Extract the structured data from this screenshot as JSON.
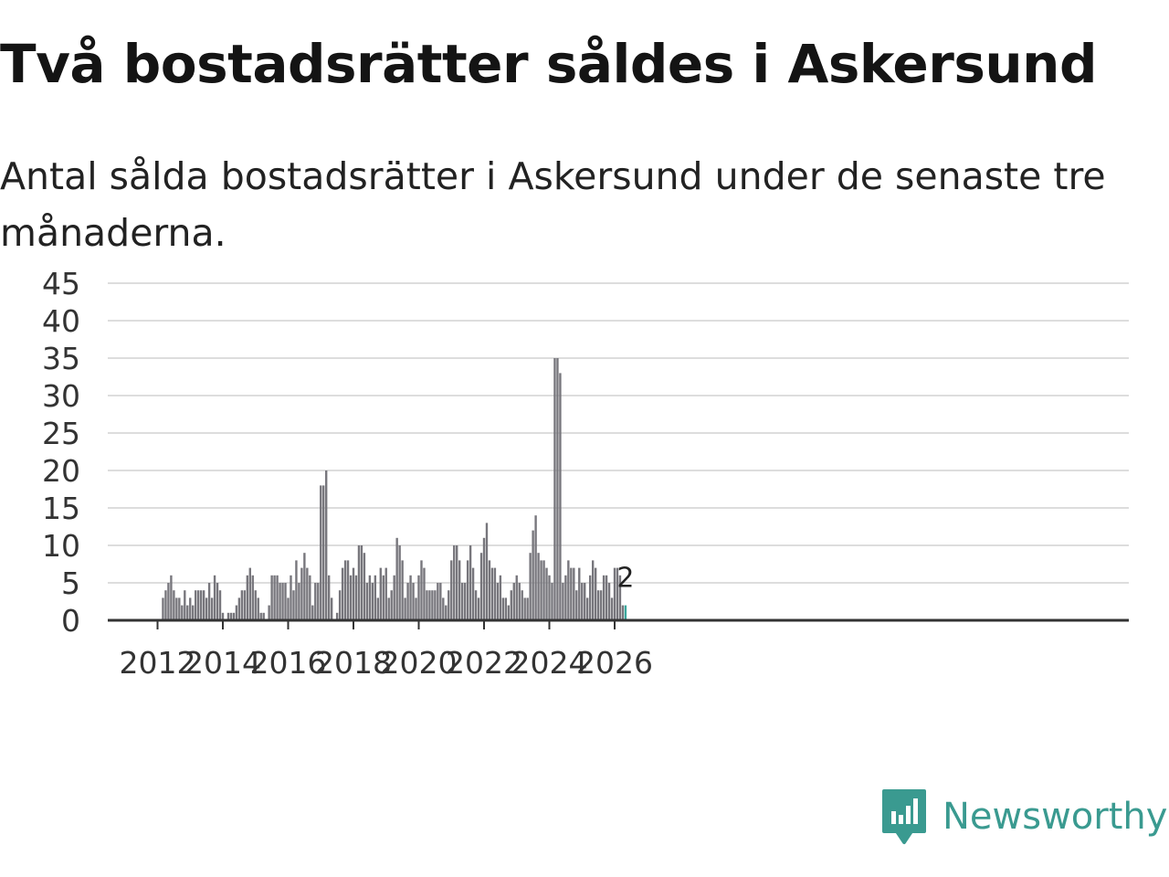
{
  "title": "Två bostadsrätter såldes i Askersund",
  "subtitle": "Antal sålda bostadsrätter i Askersund under de senaste tre månaderna.",
  "brand": {
    "name": "Newsworthy",
    "icon": "newsworthy-logo-icon"
  },
  "colors": {
    "bar": "#77767c",
    "highlight": "#3aa79c",
    "brand": "#3a9a90",
    "grid": "#dddddd",
    "axis": "#333333"
  },
  "chart_data": {
    "type": "bar",
    "title": "Två bostadsrätter såldes i Askersund",
    "ylim": [
      0,
      45
    ],
    "yticks": [
      0,
      5,
      10,
      15,
      20,
      25,
      30,
      35,
      40,
      45
    ],
    "xticks": [
      "2012",
      "2014",
      "2016",
      "2018",
      "2020",
      "2022",
      "2024",
      "2026"
    ],
    "grid": true,
    "series": [
      {
        "start": "2011-06",
        "values": [
          0,
          0,
          0,
          0,
          0,
          0,
          0,
          0,
          0,
          3,
          4,
          5,
          6,
          4,
          3,
          3,
          2,
          4,
          2,
          3,
          2,
          4,
          4,
          4,
          4,
          3,
          5,
          3,
          6,
          5,
          4,
          1,
          0,
          1,
          1,
          1,
          2,
          3,
          4,
          4,
          6,
          7,
          6,
          4,
          3,
          1,
          1,
          0,
          2,
          6,
          6,
          6,
          5,
          5,
          5,
          3,
          6,
          4,
          8,
          5,
          7,
          9,
          7,
          6,
          2,
          5,
          5,
          18,
          18,
          20,
          6,
          3,
          0,
          1,
          4,
          7,
          8,
          8,
          6,
          7,
          6,
          10,
          10,
          9,
          5,
          6,
          5,
          6,
          3,
          7,
          6,
          7,
          3,
          4,
          6,
          11,
          10,
          8,
          3,
          5,
          6,
          5,
          3,
          6,
          8,
          7,
          4,
          4,
          4,
          4,
          5,
          5,
          3,
          2,
          4,
          8,
          10,
          10,
          8,
          5,
          5,
          8,
          10,
          7,
          4,
          3,
          9,
          11,
          13,
          8,
          7,
          7,
          5,
          6,
          3,
          3,
          2,
          4,
          5,
          6,
          5,
          4,
          3,
          3,
          9,
          12,
          14,
          9,
          8,
          8,
          7,
          6,
          5,
          35,
          35,
          33,
          5,
          6,
          8,
          7,
          7,
          4,
          7,
          5,
          5,
          3,
          6,
          8,
          7,
          4,
          4,
          6,
          6,
          5,
          3,
          7,
          7,
          6,
          2,
          2
        ],
        "highlight_last": 1,
        "last_label": "2"
      }
    ]
  }
}
